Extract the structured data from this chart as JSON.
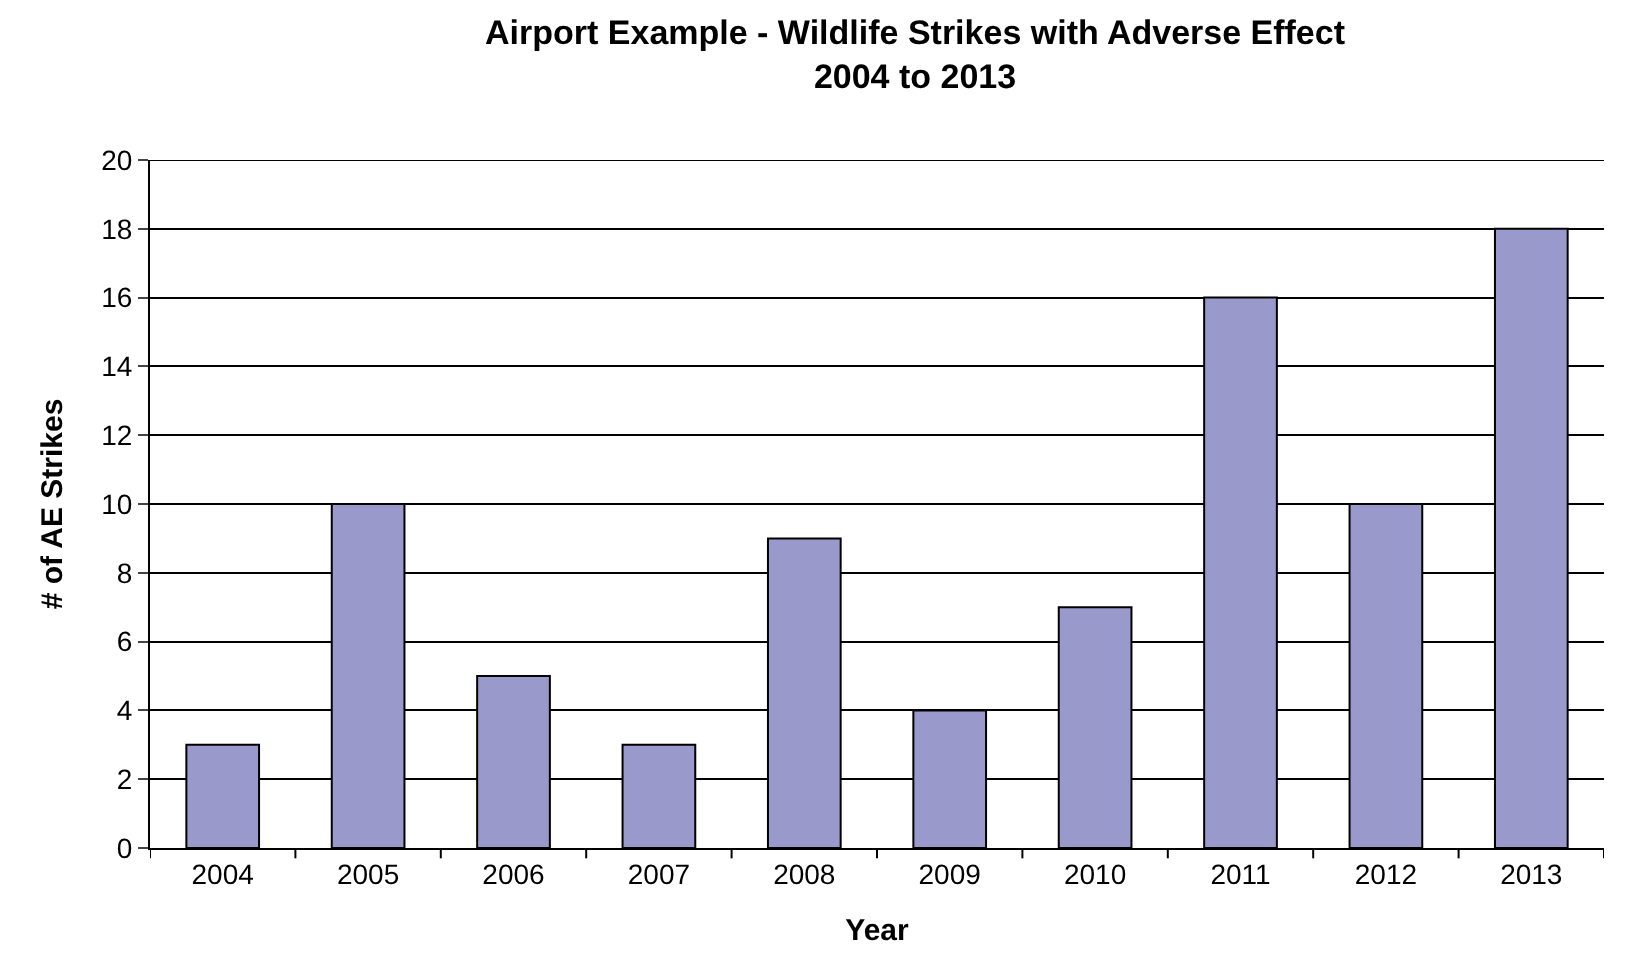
{
  "chart_data": {
    "type": "bar",
    "title": "Airport Example - Wildlife Strikes with Adverse Effect\n2004 to 2013",
    "xlabel": "Year",
    "ylabel": "# of AE Strikes",
    "categories": [
      "2004",
      "2005",
      "2006",
      "2007",
      "2008",
      "2009",
      "2010",
      "2011",
      "2012",
      "2013"
    ],
    "values": [
      3,
      10,
      5,
      3,
      9,
      4,
      7,
      16,
      10,
      18
    ],
    "color": "#9999cc",
    "ylim": [
      0,
      20
    ],
    "yticks": [
      0,
      2,
      4,
      6,
      8,
      10,
      12,
      14,
      16,
      18,
      20
    ],
    "grid": "y"
  }
}
